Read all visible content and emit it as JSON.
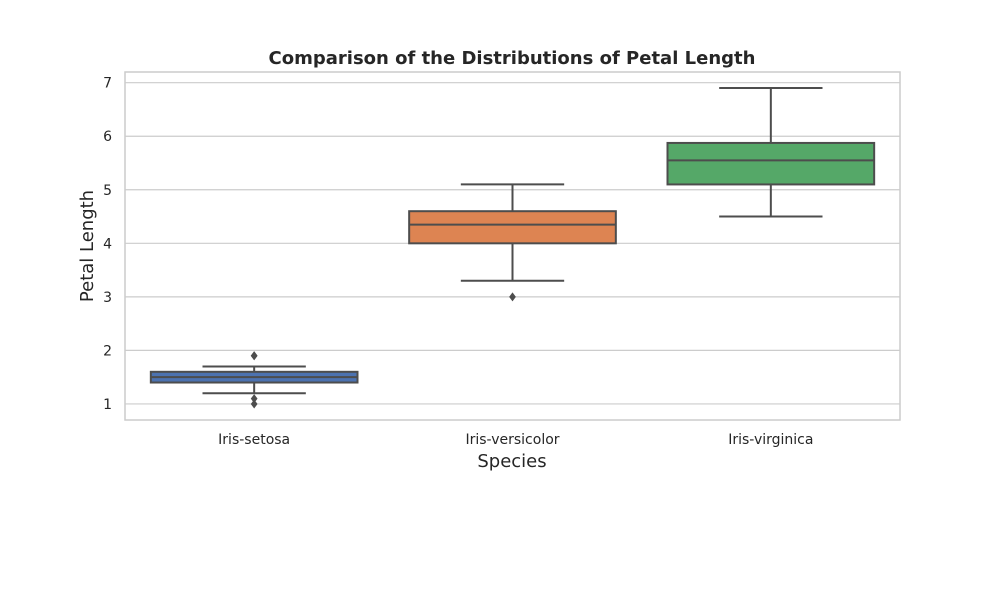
{
  "chart_data": {
    "type": "box",
    "title": "Comparison of the Distributions of Petal Length",
    "xlabel": "Species",
    "ylabel": "Petal Length",
    "ylim": [
      0.7,
      7.2
    ],
    "yticks": [
      1,
      2,
      3,
      4,
      5,
      6,
      7
    ],
    "grid": true,
    "categories": [
      "Iris-setosa",
      "Iris-versicolor",
      "Iris-virginica"
    ],
    "boxes": [
      {
        "category": "Iris-setosa",
        "color": "#4c72b0",
        "whisker_low": 1.2,
        "q1": 1.4,
        "median": 1.5,
        "q3": 1.6,
        "whisker_high": 1.7,
        "outliers": [
          1.0,
          1.1,
          1.9,
          1.9
        ]
      },
      {
        "category": "Iris-versicolor",
        "color": "#dd8452",
        "whisker_low": 3.3,
        "q1": 4.0,
        "median": 4.35,
        "q3": 4.6,
        "whisker_high": 5.1,
        "outliers": [
          3.0
        ]
      },
      {
        "category": "Iris-virginica",
        "color": "#55a868",
        "whisker_low": 4.5,
        "q1": 5.1,
        "median": 5.55,
        "q3": 5.875,
        "whisker_high": 6.9,
        "outliers": []
      }
    ]
  }
}
